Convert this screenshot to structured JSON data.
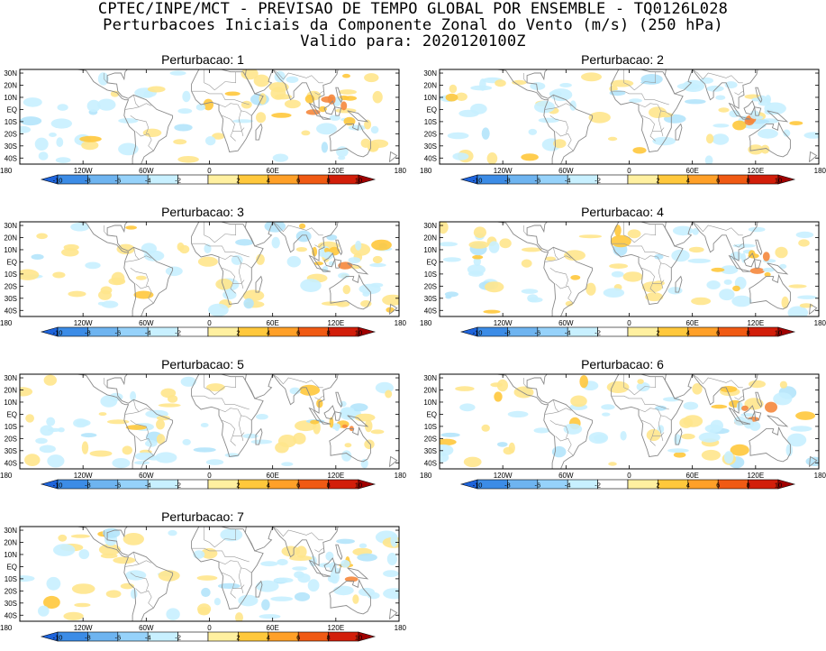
{
  "header": {
    "line1": "CPTEC/INPE/MCT - PREVISAO DE TEMPO GLOBAL POR ENSEMBLE - TQ0126L028",
    "line2": "Perturbacoes Iniciais da Componente Zonal do Vento (m/s) (250 hPa)",
    "line3": "Valido para: 2020120100Z"
  },
  "panels": [
    {
      "title": "Perturbacao: 1"
    },
    {
      "title": "Perturbacao: 2"
    },
    {
      "title": "Perturbacao: 3"
    },
    {
      "title": "Perturbacao: 4"
    },
    {
      "title": "Perturbacao: 5"
    },
    {
      "title": "Perturbacao: 6"
    },
    {
      "title": "Perturbacao: 7"
    }
  ],
  "lat_labels": [
    "30N",
    "20N",
    "10N",
    "EQ",
    "10S",
    "20S",
    "30S",
    "40S"
  ],
  "lon_labels": [
    "180",
    "120W",
    "60W",
    "0",
    "60E",
    "120E",
    "180"
  ],
  "colorbar": {
    "tick_labels": [
      "-10",
      "-8",
      "-6",
      "-4",
      "-2",
      "2",
      "4",
      "6",
      "8",
      "10"
    ],
    "colors": [
      "#1e64dc",
      "#3c8ce6",
      "#6eb4f0",
      "#96d2fa",
      "#c8f0ff",
      "#ffffff",
      "#fff0a0",
      "#ffc83c",
      "#ffa028",
      "#f05a14",
      "#d21e0a",
      "#a00000"
    ]
  }
}
